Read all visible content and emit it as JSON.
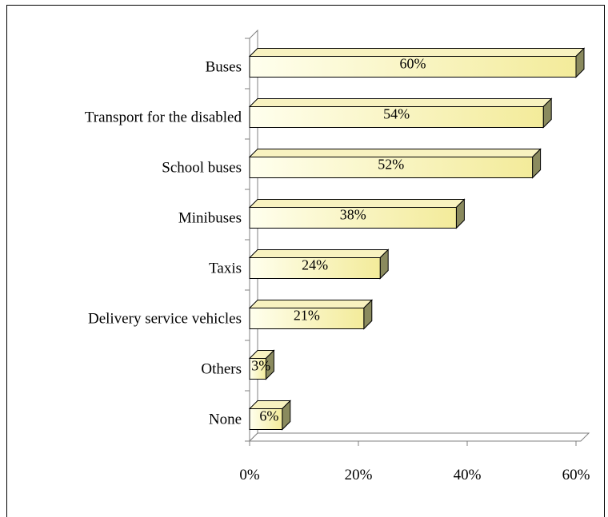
{
  "chart_data": {
    "type": "bar",
    "orientation": "horizontal",
    "categories": [
      "Buses",
      "Transport for the disabled",
      "School buses",
      "Minibuses",
      "Taxis",
      "Delivery service vehicles",
      "Others",
      "None"
    ],
    "values": [
      60,
      54,
      52,
      38,
      24,
      21,
      3,
      6
    ],
    "data_labels": [
      "60%",
      "54%",
      "52%",
      "38%",
      "24%",
      "21%",
      "3%",
      "6%"
    ],
    "xlim": [
      0,
      60
    ],
    "x_ticks": [
      0,
      20,
      40,
      60
    ],
    "x_tick_labels": [
      "0%",
      "20%",
      "40%",
      "60%"
    ],
    "grid": false,
    "legend": "none",
    "colors": {
      "bar_front_left": "#ffffee",
      "bar_front_right": "#f3eb9a",
      "bar_top": "#f8f2c0",
      "bar_side": "#8a8a5e",
      "wall": "#ffffff",
      "axis": "#808080"
    }
  }
}
